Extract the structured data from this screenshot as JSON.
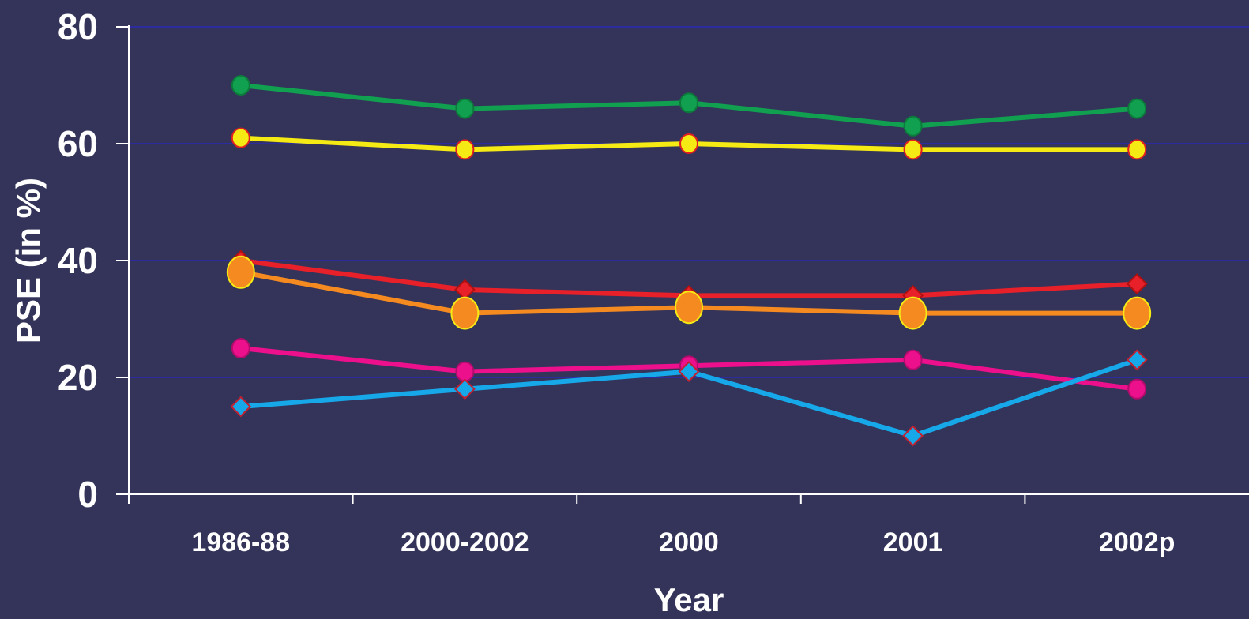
{
  "chart_data": {
    "type": "line",
    "title": "",
    "xlabel": "Year",
    "ylabel": "PSE (in %)",
    "ylim": [
      0,
      80
    ],
    "yticks": [
      "0",
      "20",
      "40",
      "60",
      "80"
    ],
    "categories": [
      "1986-88",
      "2000-2002",
      "2000",
      "2001",
      "2002p"
    ],
    "grid": true,
    "series": [
      {
        "color": "#10a050",
        "marker": "circle",
        "marker_fill": "#10a050",
        "marker_stroke": "#0c7a3a",
        "values": [
          70,
          66,
          67,
          63,
          66
        ]
      },
      {
        "color": "#f5ea14",
        "marker": "circle",
        "marker_fill": "#f5ea14",
        "marker_stroke": "#e02020",
        "values": [
          61,
          59,
          60,
          59,
          59
        ]
      },
      {
        "color": "#e8202a",
        "marker": "diamond",
        "marker_fill": "#e8202a",
        "marker_stroke": "#b01010",
        "values": [
          40,
          35,
          34,
          34,
          36
        ]
      },
      {
        "color": "#f58a20",
        "marker": "big-circle",
        "marker_fill": "#f58a20",
        "marker_stroke": "#f5ea14",
        "values": [
          38,
          31,
          32,
          31,
          31
        ]
      },
      {
        "color": "#ec108c",
        "marker": "circle",
        "marker_fill": "#ec108c",
        "marker_stroke": "#b00c6c",
        "values": [
          25,
          21,
          22,
          23,
          18
        ]
      },
      {
        "color": "#16a8e8",
        "marker": "diamond",
        "marker_fill": "#16a8e8",
        "marker_stroke": "#c02030",
        "values": [
          15,
          18,
          21,
          10,
          23
        ]
      }
    ]
  }
}
